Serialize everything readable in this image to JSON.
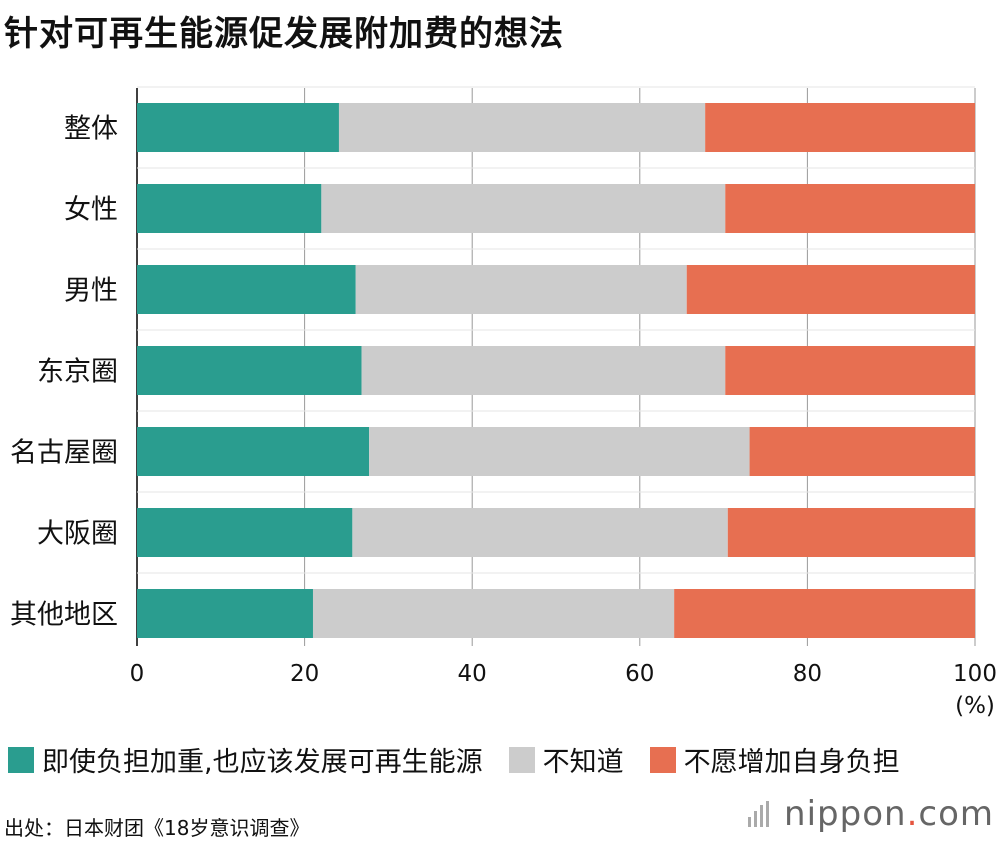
{
  "title": "针对可再生能源促发展附加费的想法",
  "chart_data": {
    "type": "bar",
    "orientation": "horizontal",
    "stacked": true,
    "categories": [
      "整体",
      "女性",
      "男性",
      "东京圈",
      "名古屋圈",
      "大阪圈",
      "其他地区"
    ],
    "series": [
      {
        "name": "即使负担加重，也应该发展可再生能源",
        "color": "#2a9d8f",
        "values": [
          24.1,
          22.0,
          26.1,
          26.8,
          27.7,
          25.7,
          21.0
        ]
      },
      {
        "name": "不知道",
        "color": "#cccccc",
        "values": [
          43.7,
          48.2,
          39.5,
          43.4,
          45.4,
          44.8,
          43.1
        ]
      },
      {
        "name": "不愿增加自身负担",
        "color": "#e76f51",
        "values": [
          32.2,
          29.8,
          34.4,
          29.8,
          26.9,
          29.5,
          35.9
        ]
      }
    ],
    "xlim": [
      0,
      100
    ],
    "xticks": [
      "0",
      "20",
      "40",
      "60",
      "80",
      "100"
    ],
    "xunit": "(%)",
    "grid": true
  },
  "legend": [
    {
      "label": "即使负担加重,也应该发展可再生能源",
      "color": "#2a9d8f"
    },
    {
      "label": "不知道",
      "color": "#cccccc"
    },
    {
      "label": "不愿增加自身负担",
      "color": "#e76f51"
    }
  ],
  "source": "出处：日本财团《18岁意识调查》",
  "logo": {
    "name": "nippon",
    "dot": ".",
    "suffix": "com"
  }
}
